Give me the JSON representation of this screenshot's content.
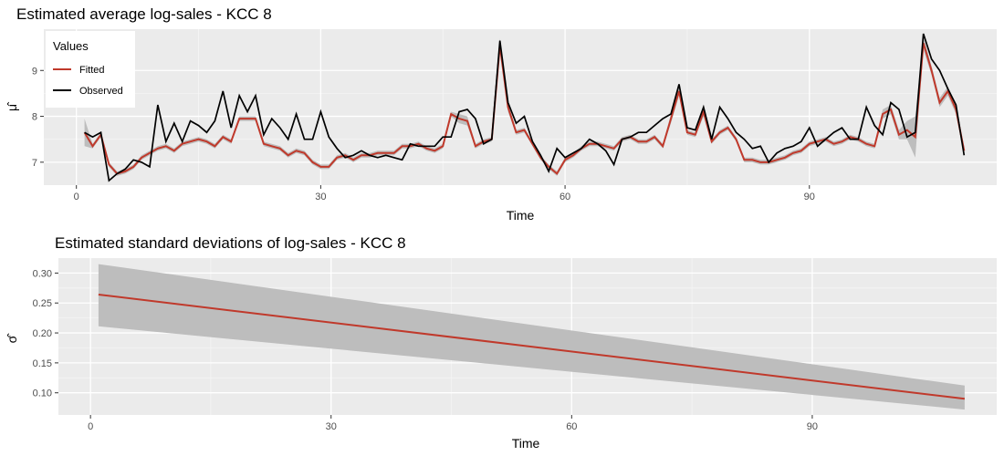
{
  "chart_data": [
    {
      "type": "line",
      "title": "Estimated average log-sales - KCC 8",
      "xlabel": "Time",
      "ylabel": "μ̂",
      "xlim": [
        -4,
        113
      ],
      "ylim": [
        6.5,
        9.9
      ],
      "xticks": [
        0,
        30,
        60,
        90
      ],
      "yticks": [
        7,
        8,
        9
      ],
      "grid": true,
      "legend": {
        "title": "Values",
        "position": "top-left",
        "entries": [
          "Fitted",
          "Observed"
        ]
      },
      "colors": {
        "fitted": "#c0392b",
        "observed": "#000000",
        "band": "#bdbdbd",
        "panel": "#ebebeb"
      },
      "x": [
        1,
        2,
        3,
        4,
        5,
        6,
        7,
        8,
        9,
        10,
        11,
        12,
        13,
        14,
        15,
        16,
        17,
        18,
        19,
        20,
        21,
        22,
        23,
        24,
        25,
        26,
        27,
        28,
        29,
        30,
        31,
        32,
        33,
        34,
        35,
        36,
        37,
        38,
        39,
        40,
        41,
        42,
        43,
        44,
        45,
        46,
        47,
        48,
        49,
        50,
        51,
        52,
        53,
        54,
        55,
        56,
        57,
        58,
        59,
        60,
        61,
        62,
        63,
        64,
        65,
        66,
        67,
        68,
        69,
        70,
        71,
        72,
        73,
        74,
        75,
        76,
        77,
        78,
        79,
        80,
        81,
        82,
        83,
        84,
        85,
        86,
        87,
        88,
        89,
        90,
        91,
        92,
        93,
        94,
        95,
        96,
        97,
        98,
        99,
        100,
        101,
        102,
        103,
        104,
        105,
        106,
        107,
        108,
        109
      ],
      "series": [
        {
          "name": "Fitted",
          "values": [
            7.65,
            7.35,
            7.6,
            6.95,
            6.75,
            6.8,
            6.9,
            7.1,
            7.2,
            7.3,
            7.35,
            7.25,
            7.4,
            7.45,
            7.5,
            7.45,
            7.35,
            7.55,
            7.45,
            7.95,
            7.95,
            7.95,
            7.4,
            7.35,
            7.3,
            7.15,
            7.25,
            7.2,
            7.0,
            6.9,
            6.9,
            7.1,
            7.15,
            7.05,
            7.15,
            7.15,
            7.2,
            7.2,
            7.2,
            7.35,
            7.35,
            7.4,
            7.3,
            7.25,
            7.35,
            8.05,
            7.95,
            7.9,
            7.35,
            7.45,
            7.5,
            9.55,
            8.2,
            7.65,
            7.7,
            7.4,
            7.1,
            6.9,
            6.75,
            7.05,
            7.15,
            7.3,
            7.4,
            7.4,
            7.35,
            7.3,
            7.5,
            7.55,
            7.45,
            7.45,
            7.55,
            7.35,
            7.95,
            8.55,
            7.65,
            7.6,
            8.1,
            7.45,
            7.65,
            7.75,
            7.5,
            7.05,
            7.05,
            7.0,
            7.0,
            7.05,
            7.1,
            7.2,
            7.25,
            7.4,
            7.45,
            7.5,
            7.4,
            7.45,
            7.55,
            7.5,
            7.4,
            7.35,
            8.05,
            8.15,
            7.6,
            7.7,
            7.55,
            9.6,
            9.0,
            8.3,
            8.55,
            8.15,
            7.25
          ],
          "lower": [
            7.35,
            7.3,
            7.55,
            6.9,
            6.7,
            6.75,
            6.85,
            7.05,
            7.15,
            7.25,
            7.3,
            7.2,
            7.35,
            7.4,
            7.45,
            7.4,
            7.3,
            7.5,
            7.4,
            7.9,
            7.9,
            7.9,
            7.35,
            7.3,
            7.25,
            7.1,
            7.2,
            7.15,
            6.95,
            6.85,
            6.85,
            7.05,
            7.1,
            7.0,
            7.1,
            7.1,
            7.15,
            7.15,
            7.15,
            7.3,
            7.3,
            7.35,
            7.25,
            7.2,
            7.3,
            8.0,
            7.85,
            7.8,
            7.3,
            7.4,
            7.45,
            9.4,
            8.1,
            7.6,
            7.65,
            7.35,
            7.05,
            6.85,
            6.7,
            7.0,
            7.1,
            7.25,
            7.35,
            7.35,
            7.3,
            7.25,
            7.45,
            7.5,
            7.4,
            7.4,
            7.5,
            7.3,
            7.85,
            8.45,
            7.6,
            7.55,
            8.0,
            7.4,
            7.6,
            7.7,
            7.45,
            7.0,
            7.0,
            6.95,
            6.95,
            7.0,
            7.05,
            7.15,
            7.2,
            7.35,
            7.4,
            7.45,
            7.35,
            7.4,
            7.5,
            7.45,
            7.35,
            7.3,
            7.95,
            8.05,
            7.5,
            7.5,
            7.1,
            9.45,
            8.9,
            8.2,
            8.45,
            8.05,
            7.15
          ],
          "upper": [
            7.95,
            7.4,
            7.65,
            7.0,
            6.8,
            6.85,
            6.95,
            7.15,
            7.25,
            7.35,
            7.4,
            7.3,
            7.45,
            7.5,
            7.55,
            7.5,
            7.4,
            7.6,
            7.5,
            8.0,
            8.0,
            8.0,
            7.45,
            7.4,
            7.35,
            7.2,
            7.3,
            7.25,
            7.05,
            6.95,
            6.95,
            7.15,
            7.2,
            7.1,
            7.2,
            7.2,
            7.25,
            7.25,
            7.25,
            7.4,
            7.4,
            7.45,
            7.35,
            7.3,
            7.4,
            8.1,
            8.05,
            8.0,
            7.4,
            7.5,
            7.55,
            9.7,
            8.3,
            7.7,
            7.75,
            7.45,
            7.15,
            6.95,
            6.8,
            7.1,
            7.2,
            7.35,
            7.45,
            7.45,
            7.4,
            7.35,
            7.55,
            7.6,
            7.5,
            7.5,
            7.6,
            7.4,
            8.05,
            8.65,
            7.7,
            7.65,
            8.2,
            7.5,
            7.7,
            7.8,
            7.55,
            7.1,
            7.1,
            7.05,
            7.05,
            7.1,
            7.15,
            7.25,
            7.3,
            7.45,
            7.5,
            7.55,
            7.45,
            7.5,
            7.6,
            7.55,
            7.45,
            7.4,
            8.15,
            8.25,
            7.7,
            7.9,
            8.0,
            9.75,
            9.1,
            8.4,
            8.65,
            8.25,
            7.35
          ]
        },
        {
          "name": "Observed",
          "values": [
            7.65,
            7.55,
            7.65,
            6.6,
            6.75,
            6.85,
            7.05,
            7.0,
            6.9,
            8.25,
            7.45,
            7.85,
            7.45,
            7.9,
            7.8,
            7.65,
            7.9,
            8.55,
            7.75,
            8.45,
            8.1,
            8.45,
            7.6,
            7.95,
            7.75,
            7.5,
            8.05,
            7.5,
            7.5,
            8.1,
            7.55,
            7.3,
            7.1,
            7.15,
            7.25,
            7.15,
            7.1,
            7.15,
            7.1,
            7.05,
            7.4,
            7.35,
            7.35,
            7.35,
            7.55,
            7.55,
            8.1,
            8.15,
            7.95,
            7.4,
            7.5,
            9.65,
            8.3,
            7.85,
            8.0,
            7.45,
            7.15,
            6.8,
            7.3,
            7.1,
            7.2,
            7.3,
            7.5,
            7.4,
            7.25,
            6.95,
            7.5,
            7.55,
            7.65,
            7.65,
            7.8,
            7.95,
            8.05,
            8.7,
            7.75,
            7.7,
            8.2,
            7.5,
            8.2,
            7.95,
            7.65,
            7.5,
            7.3,
            7.35,
            7.0,
            7.2,
            7.3,
            7.35,
            7.45,
            7.75,
            7.35,
            7.5,
            7.65,
            7.75,
            7.5,
            7.5,
            8.2,
            7.8,
            7.6,
            8.3,
            8.15,
            7.55,
            7.65,
            9.8,
            9.25,
            9.0,
            8.6,
            8.25,
            7.15
          ]
        }
      ]
    },
    {
      "type": "line",
      "title": "Estimated standard deviations of log-sales - KCC 8",
      "xlabel": "Time",
      "ylabel": "σ̂",
      "xlim": [
        -4,
        113
      ],
      "ylim": [
        0.063,
        0.325
      ],
      "xticks": [
        0,
        30,
        60,
        90
      ],
      "yticks": [
        0.1,
        0.15,
        0.2,
        0.25,
        0.3
      ],
      "ytick_labels": [
        "0.10",
        "0.15",
        "0.20",
        "0.25",
        "0.30"
      ],
      "grid": true,
      "colors": {
        "fitted": "#c0392b",
        "band": "#bdbdbd",
        "panel": "#ebebeb"
      },
      "x": [
        1,
        109
      ],
      "fitted": [
        0.264,
        0.09
      ],
      "lower": [
        0.211,
        0.072
      ],
      "upper": [
        0.315,
        0.112
      ]
    }
  ]
}
